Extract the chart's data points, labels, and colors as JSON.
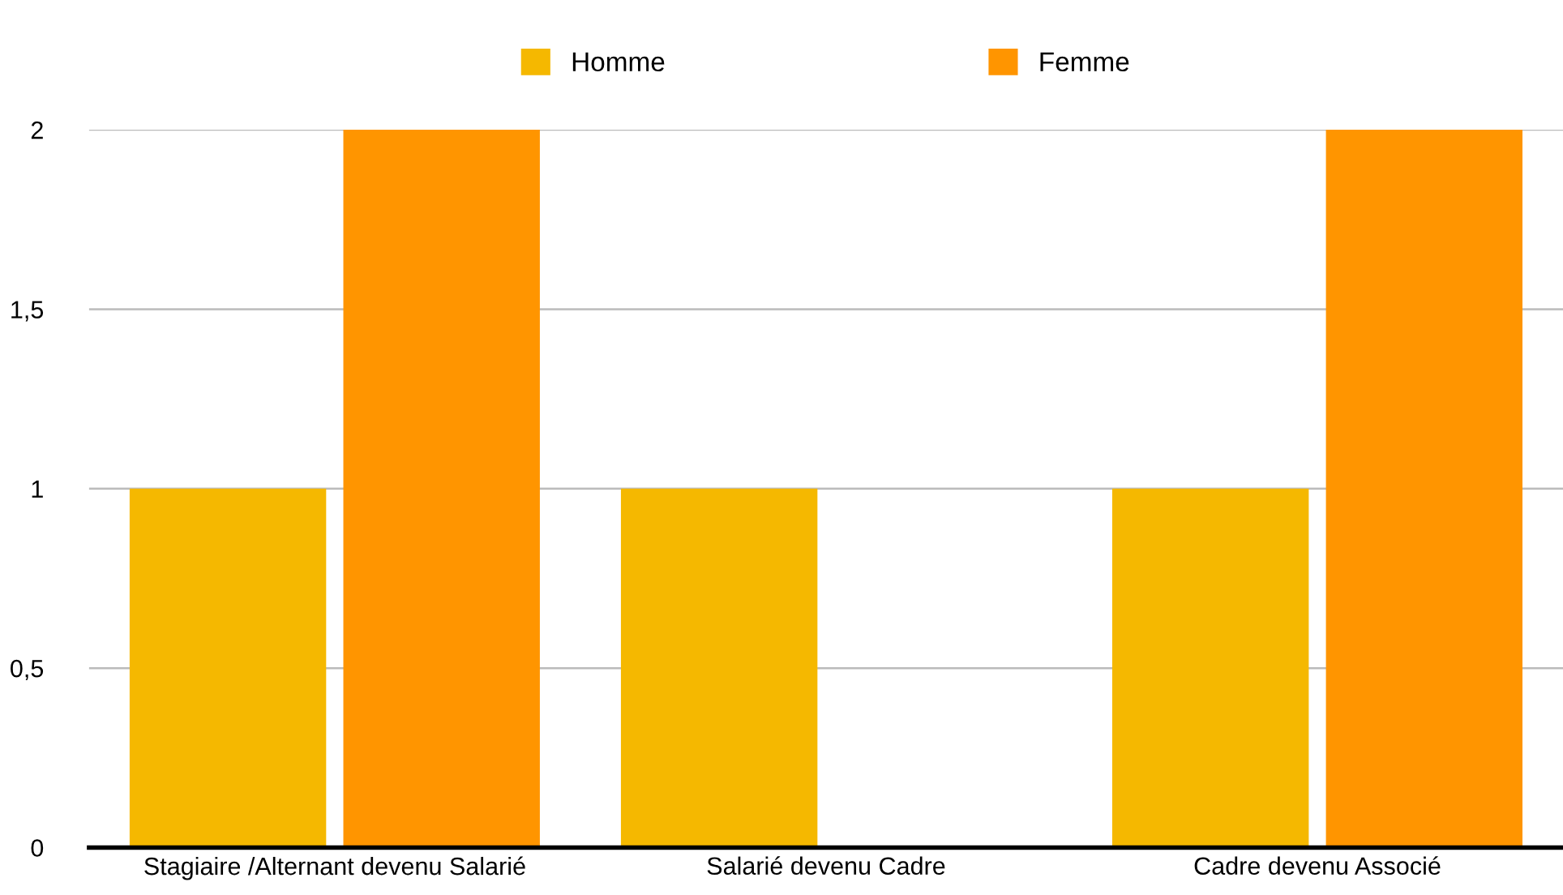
{
  "chart_data": {
    "type": "bar",
    "categories": [
      "Stagiaire /Alternant devenu Salarié",
      "Salarié devenu Cadre",
      "Cadre devenu Associé"
    ],
    "series": [
      {
        "name": "Homme",
        "color": "#f5b800",
        "values": [
          1,
          1,
          1
        ]
      },
      {
        "name": "Femme",
        "color": "#ff9500",
        "values": [
          2,
          0,
          2
        ]
      }
    ],
    "ylim": [
      0,
      2
    ],
    "yticks": [
      0,
      {
        "value": 0.5,
        "label": "0,5"
      },
      1,
      {
        "value": 1.5,
        "label": "1,5"
      },
      2
    ],
    "grid": "y",
    "legend": "top"
  }
}
